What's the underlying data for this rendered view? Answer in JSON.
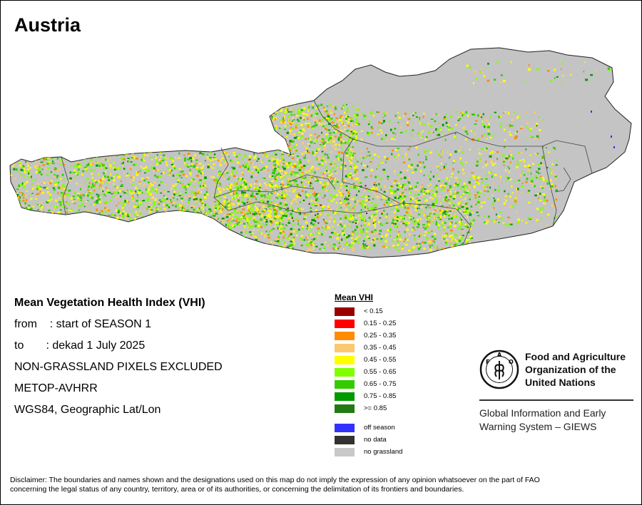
{
  "map": {
    "title": "Austria",
    "colors": {
      "country_fill": "#c4c4c4",
      "outline": "#222222"
    }
  },
  "info": {
    "vhi_title": "Mean Vegetation Health Index (VHI)",
    "from_line": "from    : start of SEASON 1",
    "to_line": "to       : dekad 1 July 2025",
    "mask_line": "NON-GRASSLAND PIXELS EXCLUDED",
    "sensor_line": "METOP-AVHRR",
    "projection_line": "WGS84, Geographic Lat/Lon"
  },
  "legend": {
    "title": "Mean VHI",
    "classes": [
      {
        "label": "< 0.15",
        "color": "#9b0000"
      },
      {
        "label": "0.15 - 0.25",
        "color": "#ff0000"
      },
      {
        "label": "0.25 - 0.35",
        "color": "#ff8c00"
      },
      {
        "label": "0.35 - 0.45",
        "color": "#fcc86e"
      },
      {
        "label": "0.45 - 0.55",
        "color": "#ffff00"
      },
      {
        "label": "0.55 - 0.65",
        "color": "#80ff00"
      },
      {
        "label": "0.65 - 0.75",
        "color": "#33cc00"
      },
      {
        "label": "0.75 - 0.85",
        "color": "#009900"
      },
      {
        "label": ">= 0.85",
        "color": "#217a12"
      }
    ],
    "special": [
      {
        "label": "off season",
        "color": "#3232ff"
      },
      {
        "label": "no data",
        "color": "#323232"
      },
      {
        "label": "no grassland",
        "color": "#c8c8c8"
      }
    ]
  },
  "logo": {
    "org_line1": "Food and Agriculture",
    "org_line2": "Organization of the",
    "org_line3": "United Nations",
    "emblem_letters": "F A O",
    "emblem_motto": "FIAT PANIS",
    "giews_line1": "Global Information and Early",
    "giews_line2": "Warning System – GIEWS"
  },
  "disclaimer": {
    "line1": "Disclaimer: The boundaries and names shown and the designations used on this map do not imply the expression of any opinion whatsoever on the part of FAO",
    "line2": "concerning the legal status of any country, territory, area or of its authorities, or concerning the delimitation of its frontiers and boundaries."
  }
}
